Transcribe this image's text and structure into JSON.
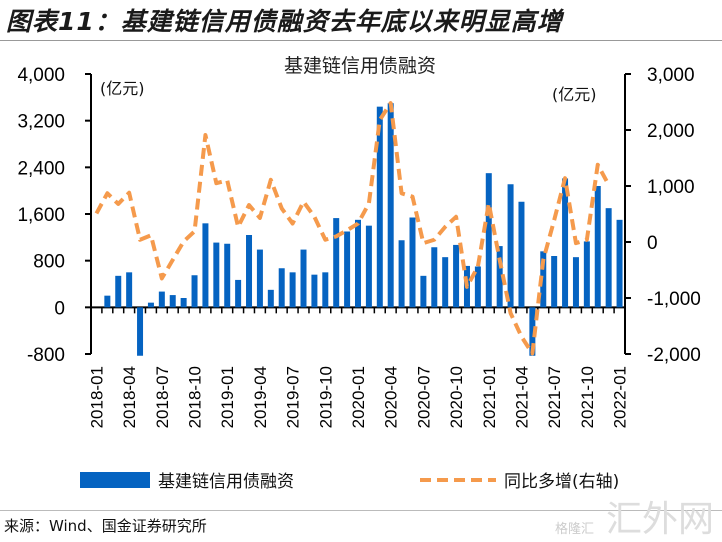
{
  "figure_title": "图表11：基建链信用债融资去年底以来明显高增",
  "source": "来源：Wind、国金证券研究所",
  "watermark": "汇外网",
  "watermark_sub": "格隆汇",
  "colors": {
    "bar": "#0563c1",
    "line": "#f59a4c"
  },
  "chart_data": {
    "type": "bar+line",
    "title": "基建链信用债融资",
    "left_unit": "(亿元)",
    "right_unit": "(亿元)",
    "ylim_left": [
      -800,
      4000
    ],
    "yticks_left": [
      "4,000",
      "3,200",
      "2,400",
      "1,600",
      "800",
      "0",
      "-800"
    ],
    "ytick_values_left": [
      4000,
      3200,
      2400,
      1600,
      800,
      0,
      -800
    ],
    "ylim_right": [
      -2000,
      3000
    ],
    "yticks_right": [
      "3,000",
      "2,000",
      "1,000",
      "0",
      "-1,000",
      "-2,000"
    ],
    "ytick_values_right": [
      3000,
      2000,
      1000,
      0,
      -1000,
      -2000
    ],
    "categories": [
      "2018-01",
      "2018-02",
      "2018-03",
      "2018-04",
      "2018-05",
      "2018-06",
      "2018-07",
      "2018-08",
      "2018-09",
      "2018-10",
      "2018-11",
      "2018-12",
      "2019-01",
      "2019-02",
      "2019-03",
      "2019-04",
      "2019-05",
      "2019-06",
      "2019-07",
      "2019-08",
      "2019-09",
      "2019-10",
      "2019-11",
      "2019-12",
      "2020-01",
      "2020-02",
      "2020-03",
      "2020-04",
      "2020-05",
      "2020-06",
      "2020-07",
      "2020-08",
      "2020-09",
      "2020-10",
      "2020-11",
      "2020-12",
      "2021-01",
      "2021-02",
      "2021-03",
      "2021-04",
      "2021-05",
      "2021-06",
      "2021-07",
      "2021-08",
      "2021-09",
      "2021-10",
      "2021-11",
      "2021-12",
      "2022-01"
    ],
    "tick_labels": [
      "2018-01",
      "2018-04",
      "2018-07",
      "2018-10",
      "2019-01",
      "2019-04",
      "2019-07",
      "2019-10",
      "2020-01",
      "2020-04",
      "2020-07",
      "2020-10",
      "2021-01",
      "2021-04",
      "2021-07",
      "2021-10",
      "2022-01"
    ],
    "series": [
      {
        "name": "基建链信用债融资",
        "type": "bar",
        "axis": "left",
        "values": [
          null,
          200,
          540,
          600,
          -830,
          80,
          270,
          210,
          160,
          550,
          1440,
          1110,
          1090,
          470,
          1240,
          990,
          300,
          670,
          600,
          990,
          560,
          600,
          1530,
          1300,
          1500,
          1400,
          3440,
          3500,
          1150,
          1540,
          540,
          1030,
          860,
          1070,
          710,
          700,
          2300,
          1050,
          2110,
          1810,
          -830,
          960,
          880,
          2210,
          860,
          1130,
          2080,
          1700,
          1500
        ]
      },
      {
        "name": "同比多增(右轴)",
        "type": "line",
        "axis": "right",
        "style": "dashed",
        "values": [
          510,
          870,
          680,
          880,
          40,
          120,
          -650,
          -320,
          10,
          190,
          1910,
          1050,
          1100,
          270,
          660,
          430,
          1110,
          600,
          330,
          720,
          450,
          40,
          100,
          210,
          330,
          690,
          2180,
          2480,
          870,
          810,
          -20,
          40,
          270,
          450,
          -800,
          -440,
          690,
          -320,
          -1270,
          -1690,
          -1990,
          -320,
          390,
          1140,
          -20,
          40,
          1380,
          1020,
          null
        ]
      }
    ],
    "legend": "bottom"
  }
}
